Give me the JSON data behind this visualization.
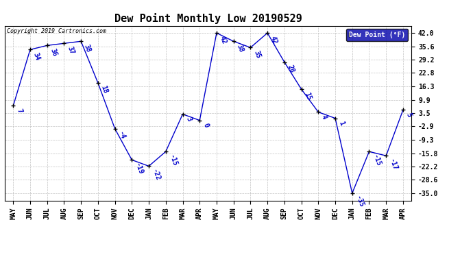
{
  "title": "Dew Point Monthly Low 20190529",
  "copyright": "Copyright 2019 Cartronics.com",
  "legend_label": "Dew Point (°F)",
  "x_labels": [
    "MAY",
    "JUN",
    "JUL",
    "AUG",
    "SEP",
    "OCT",
    "NOV",
    "DEC",
    "JAN",
    "FEB",
    "MAR",
    "APR",
    "MAY",
    "JUN",
    "JUL",
    "AUG",
    "SEP",
    "OCT",
    "NOV",
    "DEC",
    "JAN",
    "FEB",
    "MAR",
    "APR"
  ],
  "y_values": [
    7,
    34,
    36,
    37,
    38,
    18,
    -4,
    -19,
    -22,
    -15,
    3,
    0,
    42,
    38,
    35,
    42,
    28,
    15,
    4,
    1,
    -35,
    -15,
    -17,
    5
  ],
  "y_labels": [
    "42.0",
    "35.6",
    "29.2",
    "22.8",
    "16.3",
    "9.9",
    "3.5",
    "-2.9",
    "-9.3",
    "-15.8",
    "-22.2",
    "-28.6",
    "-35.0"
  ],
  "y_ticks": [
    42.0,
    35.6,
    29.2,
    22.8,
    16.3,
    9.9,
    3.5,
    -2.9,
    -9.3,
    -15.8,
    -22.2,
    -28.6,
    -35.0
  ],
  "ylim": [
    -38.5,
    45.5
  ],
  "xlim": [
    -0.5,
    23.5
  ],
  "line_color": "#0000cc",
  "marker_color": "#000000",
  "bg_color": "#ffffff",
  "grid_color": "#bbbbbb",
  "title_fontsize": 11,
  "label_fontsize": 7,
  "annot_fontsize": 7,
  "legend_bg": "#0000aa",
  "legend_fg": "#ffffff"
}
